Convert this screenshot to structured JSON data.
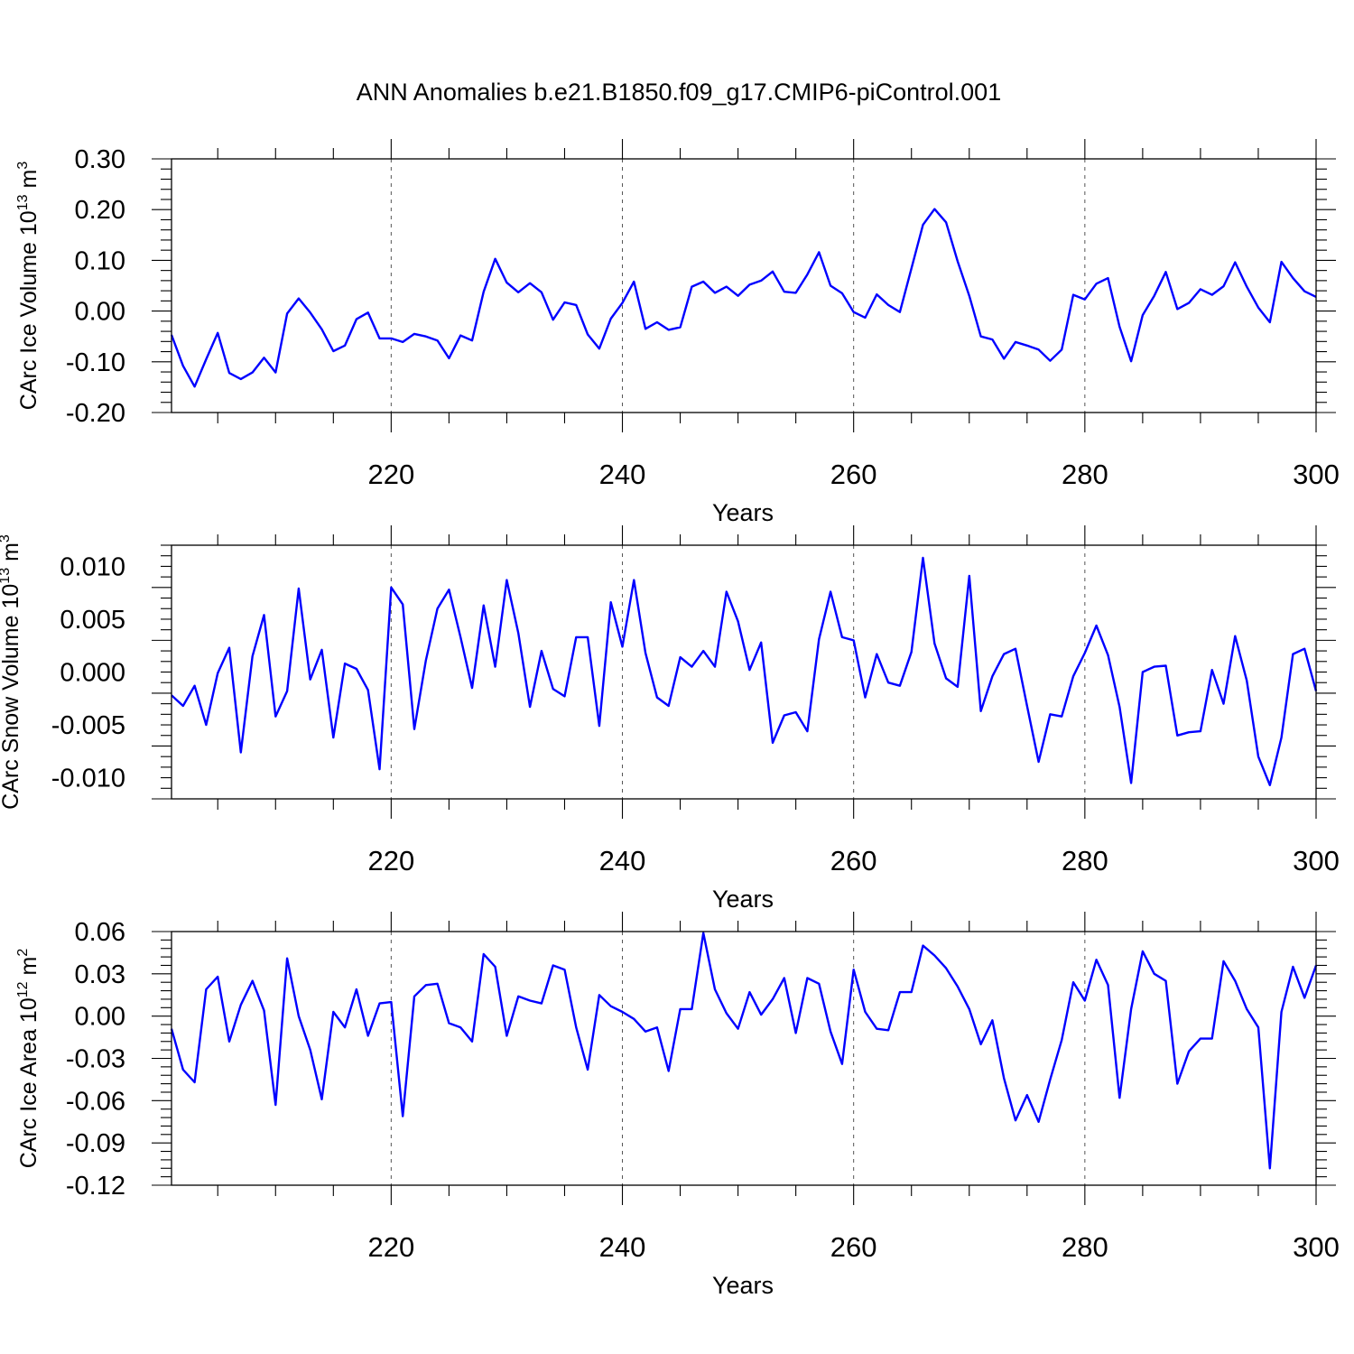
{
  "figure": {
    "title": "ANN Anomalies b.e21.B1850.f09_g17.CMIP6-piControl.001",
    "line_color": "#0000FF",
    "background": "#FFFFFF",
    "grid": "dashed vertical lines at major x ticks"
  },
  "chart_data": [
    {
      "type": "line",
      "title": "",
      "xlabel": "Years",
      "ylabel": "CArc Ice Volume 10",
      "ylabel_exponent": "13",
      "ylabel_unit": "m",
      "ylabel_unit_exponent": "3",
      "xlim": [
        201,
        300
      ],
      "ylim": [
        -0.2,
        0.3
      ],
      "x_ticks": [
        220,
        240,
        260,
        280,
        300
      ],
      "x_tick_labels": [
        "220",
        "240",
        "260",
        "280",
        "300"
      ],
      "y_ticks": [
        -0.2,
        -0.1,
        0.0,
        0.1,
        0.2,
        0.3
      ],
      "y_tick_labels": [
        "-0.20",
        "-0.10",
        "0.00",
        "0.10",
        "0.20",
        "0.30"
      ],
      "x_start": 201,
      "series": [
        {
          "color": "#0000FF",
          "values": [
            -0.047,
            -0.108,
            -0.149,
            -0.095,
            -0.043,
            -0.122,
            -0.134,
            -0.121,
            -0.092,
            -0.121,
            -0.005,
            0.025,
            -0.003,
            -0.036,
            -0.079,
            -0.068,
            -0.016,
            -0.003,
            -0.054,
            -0.054,
            -0.061,
            -0.045,
            -0.05,
            -0.058,
            -0.093,
            -0.048,
            -0.058,
            0.038,
            0.103,
            0.056,
            0.037,
            0.055,
            0.037,
            -0.017,
            0.017,
            0.012,
            -0.046,
            -0.074,
            -0.015,
            0.016,
            0.058,
            -0.035,
            -0.022,
            -0.037,
            -0.032,
            0.048,
            0.058,
            0.036,
            0.048,
            0.03,
            0.052,
            0.06,
            0.078,
            0.038,
            0.036,
            0.072,
            0.116,
            0.05,
            0.035,
            -0.002,
            -0.013,
            0.033,
            0.012,
            -0.002,
            0.084,
            0.17,
            0.201,
            0.175,
            0.098,
            0.03,
            -0.05,
            -0.056,
            -0.094,
            -0.061,
            -0.068,
            -0.076,
            -0.098,
            -0.076,
            0.032,
            0.023,
            0.054,
            0.065,
            -0.031,
            -0.099,
            -0.008,
            0.03,
            0.077,
            0.004,
            0.016,
            0.043,
            0.032,
            0.049,
            0.096,
            0.048,
            0.007,
            -0.022,
            0.097,
            0.065,
            0.039,
            0.028
          ]
        }
      ]
    },
    {
      "type": "line",
      "title": "",
      "xlabel": "Years",
      "ylabel": "CArc Snow Volume 10",
      "ylabel_exponent": "13",
      "ylabel_unit": "m",
      "ylabel_unit_exponent": "3",
      "xlim": [
        201,
        300
      ],
      "ylim": [
        -0.012,
        0.012
      ],
      "x_ticks": [
        220,
        240,
        260,
        280,
        300
      ],
      "x_tick_labels": [
        "220",
        "240",
        "260",
        "280",
        "300"
      ],
      "y_ticks": [
        -0.01,
        -0.005,
        0.0,
        0.005,
        0.01
      ],
      "y_tick_labels": [
        "-0.010",
        "-0.005",
        "0.000",
        "0.005",
        "0.010"
      ],
      "x_start": 201,
      "series": [
        {
          "color": "#0000FF",
          "values": [
            -0.0022,
            -0.0032,
            -0.0013,
            -0.005,
            -0.0001,
            0.0023,
            -0.0076,
            0.0015,
            0.0054,
            -0.0042,
            -0.0018,
            0.0079,
            -0.0007,
            0.0021,
            -0.0062,
            0.0008,
            0.0003,
            -0.0017,
            -0.0092,
            0.008,
            0.0064,
            -0.0054,
            0.0011,
            0.006,
            0.0078,
            0.0033,
            -0.0015,
            0.0063,
            0.0005,
            0.0087,
            0.0037,
            -0.0033,
            0.002,
            -0.0016,
            -0.0023,
            0.0033,
            0.0033,
            -0.0051,
            0.0066,
            0.0024,
            0.0087,
            0.0018,
            -0.0024,
            -0.0032,
            0.0014,
            0.0005,
            0.002,
            0.0005,
            0.0076,
            0.0048,
            0.0002,
            0.0028,
            -0.0067,
            -0.0041,
            -0.0038,
            -0.0056,
            0.0031,
            0.0076,
            0.0033,
            0.003,
            -0.0024,
            0.0017,
            -0.001,
            -0.0013,
            0.0019,
            0.0108,
            0.0027,
            -0.0006,
            -0.0014,
            0.0091,
            -0.0037,
            -0.0004,
            0.0017,
            0.0022,
            -0.0032,
            -0.0085,
            -0.004,
            -0.0042,
            -0.0004,
            0.0018,
            0.0044,
            0.0016,
            -0.0033,
            -0.0105,
            0.0,
            0.0005,
            0.0006,
            -0.006,
            -0.0057,
            -0.0056,
            0.0002,
            -0.003,
            0.0034,
            -0.0008,
            -0.008,
            -0.0107,
            -0.0062,
            0.0017,
            0.0022,
            -0.0018
          ]
        }
      ]
    },
    {
      "type": "line",
      "title": "",
      "xlabel": "Years",
      "ylabel": "CArc Ice Area 10",
      "ylabel_exponent": "12",
      "ylabel_unit": "m",
      "ylabel_unit_exponent": "2",
      "xlim": [
        201,
        300
      ],
      "ylim": [
        -0.12,
        0.06
      ],
      "x_ticks": [
        220,
        240,
        260,
        280,
        300
      ],
      "x_tick_labels": [
        "220",
        "240",
        "260",
        "280",
        "300"
      ],
      "y_ticks": [
        -0.12,
        -0.09,
        -0.06,
        -0.03,
        0.0,
        0.03,
        0.06
      ],
      "y_tick_labels": [
        "-0.12",
        "-0.09",
        "-0.06",
        "-0.03",
        "0.00",
        "0.03",
        "0.06"
      ],
      "x_start": 201,
      "series": [
        {
          "color": "#0000FF",
          "values": [
            -0.009,
            -0.038,
            -0.047,
            0.019,
            0.028,
            -0.018,
            0.008,
            0.025,
            0.004,
            -0.063,
            0.041,
            0.0,
            -0.024,
            -0.059,
            0.003,
            -0.008,
            0.019,
            -0.014,
            0.009,
            0.01,
            -0.071,
            0.014,
            0.022,
            0.023,
            -0.005,
            -0.008,
            -0.018,
            0.044,
            0.035,
            -0.014,
            0.014,
            0.011,
            0.009,
            0.036,
            0.033,
            -0.008,
            -0.038,
            0.015,
            0.007,
            0.003,
            -0.002,
            -0.011,
            -0.008,
            -0.039,
            0.005,
            0.005,
            0.059,
            0.019,
            0.002,
            -0.009,
            0.017,
            0.001,
            0.012,
            0.027,
            -0.012,
            0.027,
            0.023,
            -0.011,
            -0.034,
            0.033,
            0.003,
            -0.009,
            -0.01,
            0.017,
            0.017,
            0.05,
            0.043,
            0.034,
            0.021,
            0.005,
            -0.02,
            -0.003,
            -0.044,
            -0.074,
            -0.056,
            -0.075,
            -0.045,
            -0.017,
            0.024,
            0.011,
            0.04,
            0.022,
            -0.058,
            0.005,
            0.046,
            0.03,
            0.025,
            -0.048,
            -0.025,
            -0.016,
            -0.016,
            0.039,
            0.025,
            0.005,
            -0.008,
            -0.108,
            0.003,
            0.035,
            0.013,
            0.036
          ]
        }
      ]
    }
  ]
}
